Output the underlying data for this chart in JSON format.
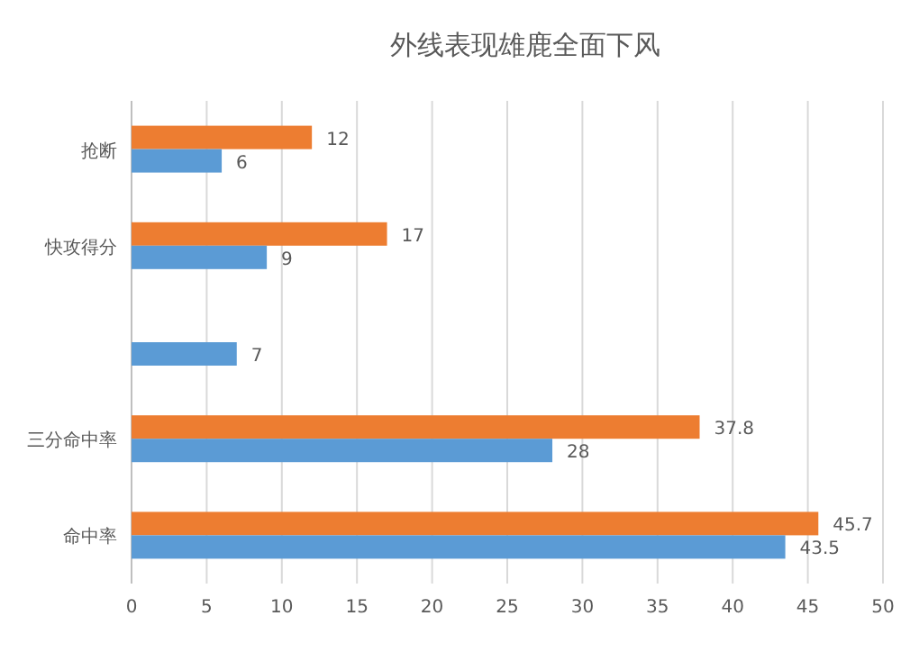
{
  "chart_data": {
    "type": "bar",
    "orientation": "horizontal",
    "title": "外线表现雄鹿全面下风",
    "categories": [
      "抢断",
      "快攻得分",
      null,
      "三分命中率",
      "命中率"
    ],
    "series": [
      {
        "color": "#ed7d31",
        "values": [
          12,
          17,
          null,
          37.8,
          45.7
        ]
      },
      {
        "color": "#5b9bd5",
        "values": [
          6,
          9,
          7,
          28,
          43.5
        ]
      }
    ],
    "xlim": [
      0,
      50
    ],
    "xticks": [
      0,
      5,
      10,
      15,
      20,
      25,
      30,
      35,
      40,
      45,
      50
    ],
    "grid": "x",
    "data_labels": true
  }
}
